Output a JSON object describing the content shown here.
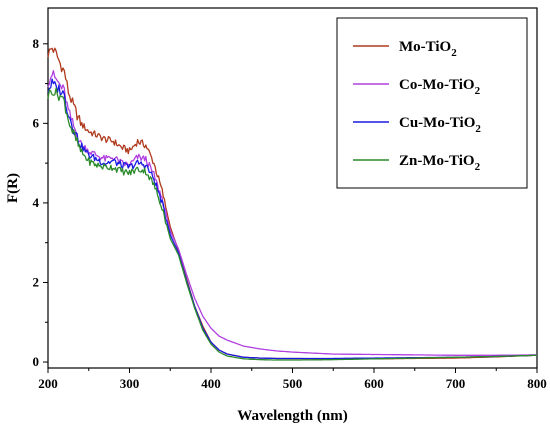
{
  "chart_data": {
    "type": "line",
    "title": "",
    "xlabel": "Wavelength (nm)",
    "ylabel": "F(R)",
    "xlim": [
      200,
      800
    ],
    "ylim": [
      -0.15,
      8.9
    ],
    "xticks": [
      "200",
      "300",
      "400",
      "500",
      "600",
      "700",
      "800"
    ],
    "yticks": [
      "0",
      "2",
      "4",
      "6",
      "8"
    ],
    "grid": false,
    "legend_position": "top-right",
    "series": [
      {
        "name": "Mo-TiO2",
        "label_main": "Mo-TiO",
        "label_sub": "2",
        "color": "#b03a1e",
        "x": [
          200,
          205,
          210,
          215,
          220,
          225,
          230,
          240,
          250,
          260,
          270,
          280,
          290,
          300,
          310,
          320,
          330,
          340,
          350,
          360,
          370,
          380,
          390,
          400,
          410,
          420,
          440,
          460,
          480,
          500,
          550,
          600,
          650,
          700,
          750,
          800
        ],
        "y": [
          7.75,
          7.9,
          7.75,
          7.5,
          7.3,
          6.8,
          6.5,
          6.0,
          5.8,
          5.7,
          5.6,
          5.55,
          5.4,
          5.3,
          5.55,
          5.45,
          5.0,
          4.3,
          3.4,
          2.8,
          2.1,
          1.4,
          0.9,
          0.5,
          0.3,
          0.2,
          0.12,
          0.1,
          0.09,
          0.09,
          0.08,
          0.08,
          0.09,
          0.1,
          0.13,
          0.17
        ]
      },
      {
        "name": "Co-Mo-TiO2",
        "label_main": "Co-Mo-TiO",
        "label_sub": "2",
        "color": "#b040e0",
        "x": [
          200,
          205,
          210,
          215,
          220,
          225,
          230,
          240,
          250,
          260,
          270,
          280,
          290,
          300,
          310,
          320,
          330,
          340,
          350,
          360,
          370,
          380,
          390,
          400,
          410,
          420,
          440,
          460,
          480,
          500,
          550,
          600,
          650,
          700,
          750,
          800
        ],
        "y": [
          7.05,
          7.25,
          7.1,
          6.95,
          6.8,
          6.3,
          6.0,
          5.5,
          5.3,
          5.2,
          5.1,
          5.15,
          5.0,
          4.95,
          5.15,
          5.1,
          4.7,
          4.1,
          3.3,
          2.85,
          2.2,
          1.6,
          1.15,
          0.85,
          0.65,
          0.55,
          0.4,
          0.33,
          0.28,
          0.25,
          0.2,
          0.19,
          0.18,
          0.17,
          0.17,
          0.18
        ]
      },
      {
        "name": "Cu-Mo-TiO2",
        "label_main": "Cu-Mo-TiO",
        "label_sub": "2",
        "color": "#1a1ae0",
        "x": [
          200,
          205,
          210,
          215,
          220,
          225,
          230,
          240,
          250,
          260,
          270,
          280,
          290,
          300,
          310,
          320,
          330,
          340,
          350,
          360,
          370,
          380,
          390,
          400,
          410,
          420,
          440,
          460,
          480,
          500,
          550,
          600,
          650,
          700,
          750,
          800
        ],
        "y": [
          6.85,
          7.0,
          6.9,
          6.85,
          6.7,
          6.25,
          5.95,
          5.45,
          5.2,
          5.1,
          5.0,
          5.05,
          4.95,
          4.9,
          5.0,
          4.95,
          4.6,
          4.0,
          3.2,
          2.75,
          2.05,
          1.4,
          0.85,
          0.5,
          0.3,
          0.2,
          0.12,
          0.1,
          0.09,
          0.09,
          0.09,
          0.1,
          0.11,
          0.12,
          0.14,
          0.17
        ]
      },
      {
        "name": "Zn-Mo-TiO2",
        "label_main": "Zn-Mo-TiO",
        "label_sub": "2",
        "color": "#2a8a2a",
        "x": [
          200,
          205,
          210,
          215,
          220,
          225,
          230,
          240,
          250,
          260,
          270,
          280,
          290,
          300,
          310,
          320,
          330,
          340,
          350,
          360,
          370,
          380,
          390,
          400,
          410,
          420,
          440,
          460,
          480,
          500,
          550,
          600,
          650,
          700,
          750,
          800
        ],
        "y": [
          6.7,
          6.85,
          6.75,
          6.7,
          6.55,
          6.1,
          5.8,
          5.3,
          5.05,
          4.95,
          4.9,
          4.9,
          4.8,
          4.75,
          4.85,
          4.8,
          4.45,
          3.9,
          3.1,
          2.7,
          2.0,
          1.35,
          0.8,
          0.45,
          0.25,
          0.15,
          0.08,
          0.06,
          0.05,
          0.05,
          0.06,
          0.08,
          0.1,
          0.12,
          0.14,
          0.17
        ]
      }
    ]
  }
}
